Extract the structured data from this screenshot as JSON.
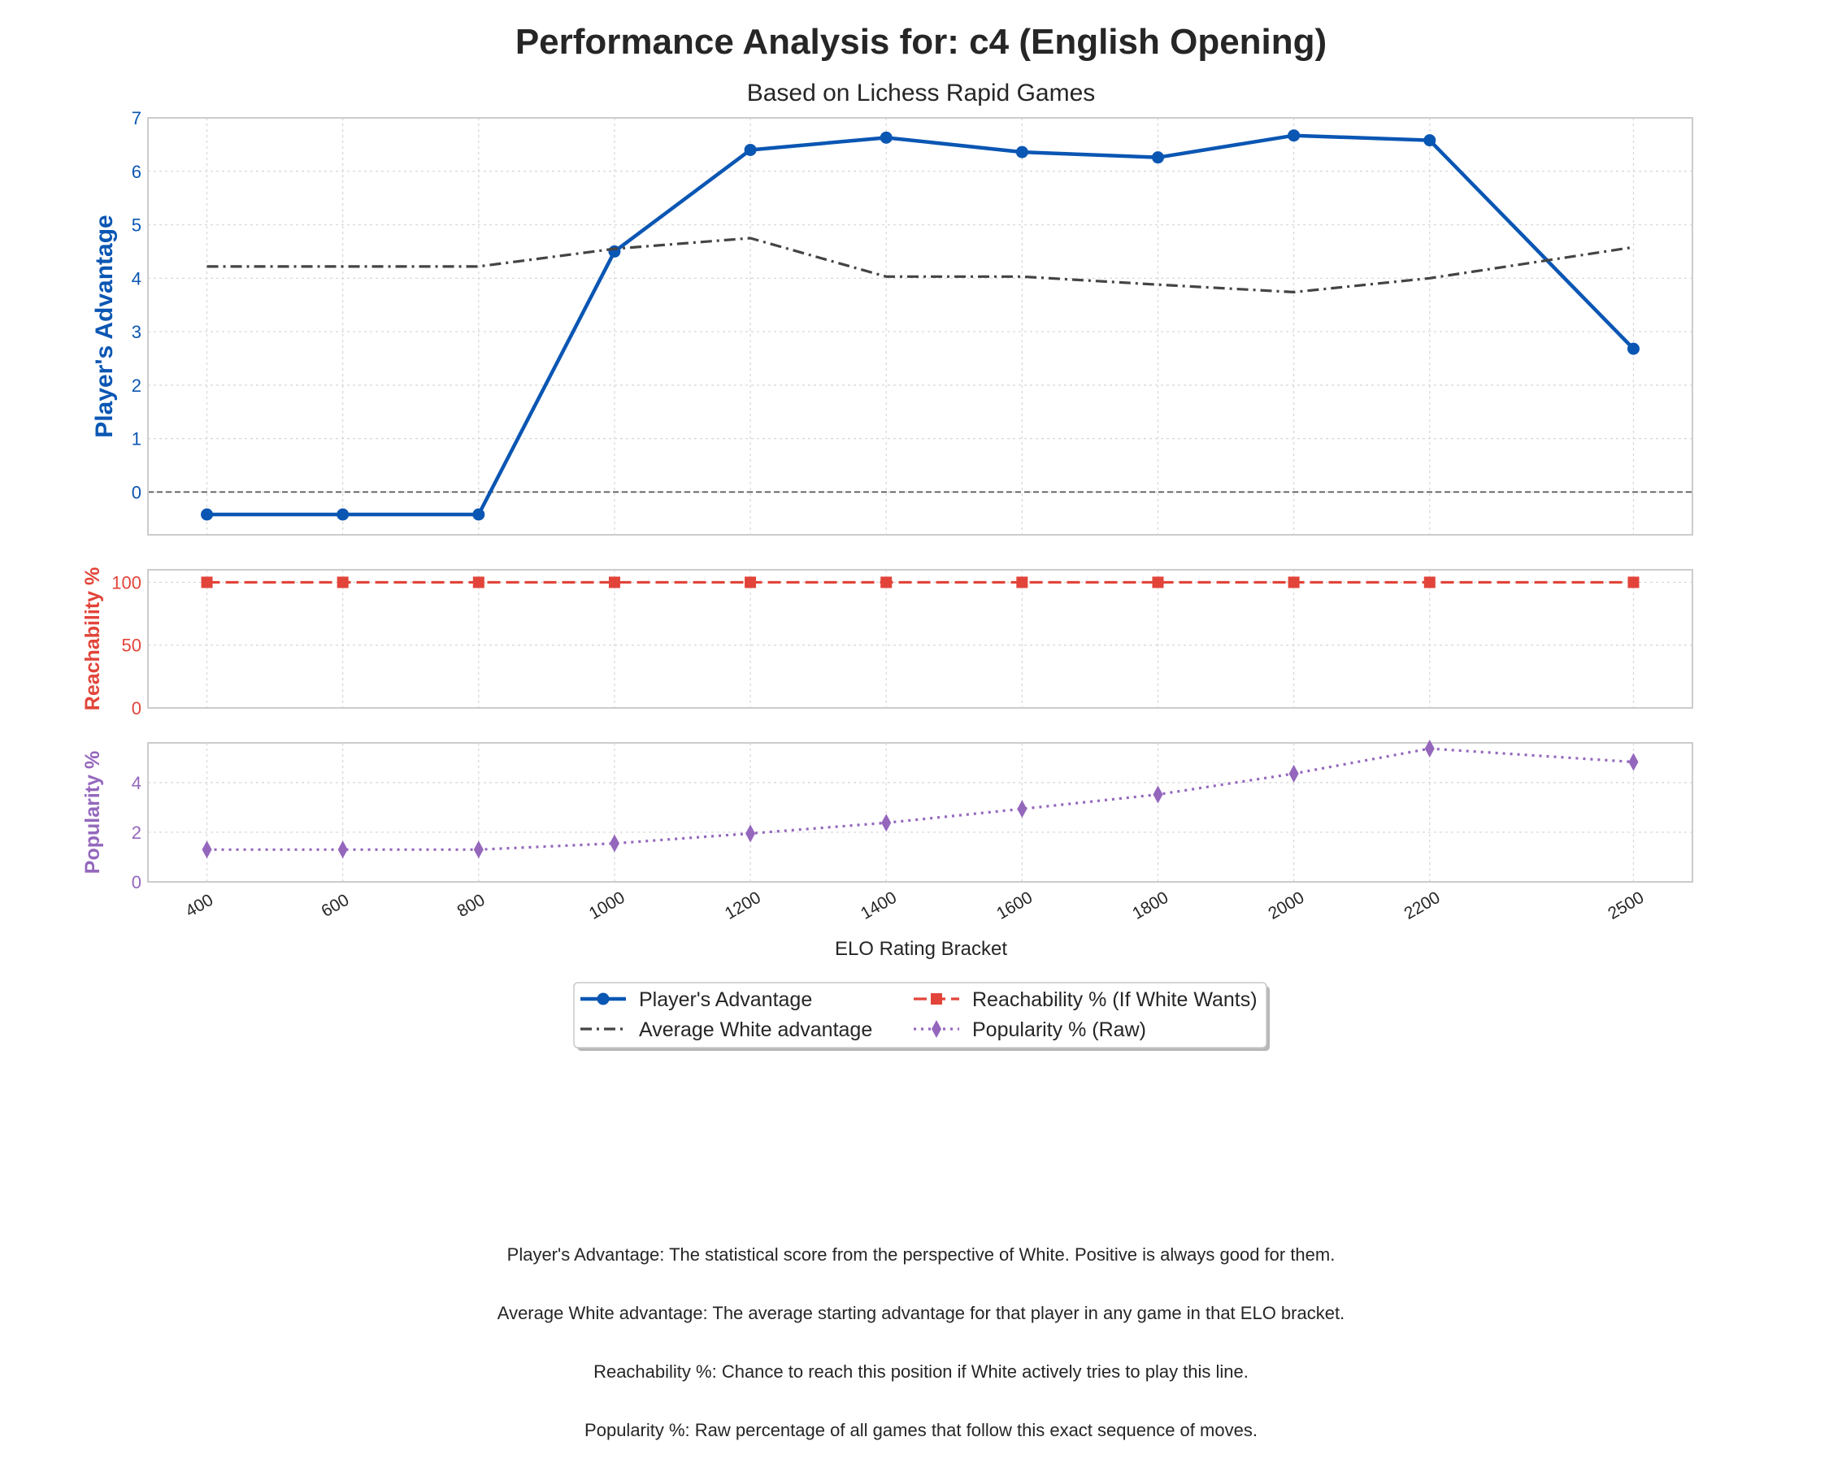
{
  "title": "Performance Analysis for: c4 (English Opening)",
  "subtitle": "Based on Lichess Rapid Games",
  "chart_data": {
    "type": "line",
    "x": [
      400,
      600,
      800,
      1000,
      1200,
      1400,
      1600,
      1800,
      2000,
      2200,
      2500
    ],
    "xlabel": "ELO Rating Bracket",
    "grid": true,
    "legend_position": "bottom-center",
    "panels": [
      {
        "ylabel": "Player's Advantage",
        "ylabel_color": "#0a56b3",
        "ylim": [
          -0.8,
          7
        ],
        "yticks": [
          0,
          1,
          2,
          3,
          4,
          5,
          6,
          7
        ],
        "zero_line": true,
        "series": [
          {
            "name": "Player's Advantage",
            "color": "#0a56b3",
            "style": "solid",
            "marker": "circle",
            "values": [
              -0.42,
              -0.42,
              -0.42,
              4.5,
              6.4,
              6.63,
              6.36,
              6.26,
              6.67,
              6.58,
              2.68
            ]
          },
          {
            "name": "Average White advantage",
            "color": "#444444",
            "style": "dashdot",
            "marker": "none",
            "values": [
              4.22,
              4.22,
              4.22,
              4.55,
              4.75,
              4.03,
              4.03,
              3.88,
              3.74,
              4.0,
              4.58
            ]
          }
        ]
      },
      {
        "ylabel": "Reachability %",
        "ylabel_color": "#e2443a",
        "ylim": [
          0,
          110
        ],
        "yticks": [
          0,
          50,
          100
        ],
        "series": [
          {
            "name": "Reachability % (If White Wants)",
            "color": "#e2443a",
            "style": "dashed",
            "marker": "square",
            "values": [
              100,
              100,
              100,
              100,
              100,
              100,
              100,
              100,
              100,
              100,
              100
            ]
          }
        ]
      },
      {
        "ylabel": "Popularity %",
        "ylabel_color": "#9467bd",
        "ylim": [
          0,
          5.6
        ],
        "yticks": [
          0,
          2,
          4
        ],
        "series": [
          {
            "name": "Popularity % (Raw)",
            "color": "#9467bd",
            "style": "dotted",
            "marker": "diamond",
            "values": [
              1.3,
              1.3,
              1.3,
              1.55,
              1.95,
              2.38,
              2.94,
              3.52,
              4.36,
              5.37,
              4.83
            ]
          }
        ]
      }
    ]
  },
  "legend": [
    {
      "label": "Player's Advantage",
      "color": "#0a56b3",
      "style": "solid",
      "marker": "circle"
    },
    {
      "label": "Average White advantage",
      "color": "#444444",
      "style": "dashdot",
      "marker": "none"
    },
    {
      "label": "Reachability % (If White Wants)",
      "color": "#e2443a",
      "style": "dashed",
      "marker": "square"
    },
    {
      "label": "Popularity % (Raw)",
      "color": "#9467bd",
      "style": "dotted",
      "marker": "diamond"
    }
  ],
  "notes": [
    "Player's Advantage: The statistical score from the perspective of White. Positive is always good for them.",
    "Average White advantage: The average starting advantage for that player in any game in that ELO bracket.",
    "Reachability %: Chance to reach this position if White actively tries to play this line.",
    "Popularity %: Raw percentage of all games that follow this exact sequence of moves."
  ]
}
